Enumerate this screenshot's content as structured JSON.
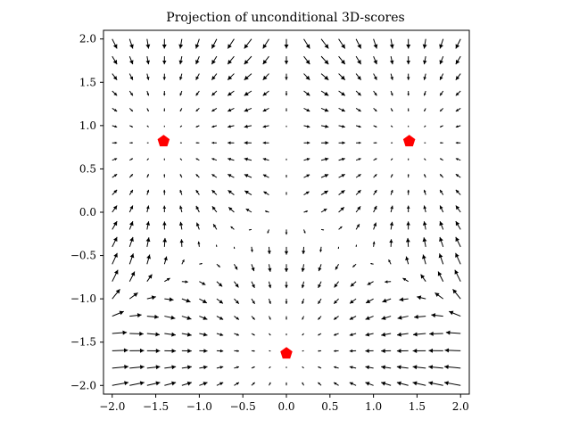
{
  "chart_data": {
    "type": "quiver",
    "title": "Projection of unconditional 3D-scores",
    "xlabel": "",
    "ylabel": "",
    "xlim": [
      -2.1,
      2.1
    ],
    "ylim": [
      -2.1,
      2.1
    ],
    "xticks": [
      -2.0,
      -1.5,
      -1.0,
      -0.5,
      0.0,
      0.5,
      1.0,
      1.5,
      2.0
    ],
    "yticks": [
      -2.0,
      -1.5,
      -1.0,
      -0.5,
      0.0,
      0.5,
      1.0,
      1.5,
      2.0
    ],
    "xtick_labels": [
      "−2.0",
      "−1.5",
      "−1.0",
      "−0.5",
      "0.0",
      "0.5",
      "1.0",
      "1.5",
      "2.0"
    ],
    "ytick_labels": [
      "−2.0",
      "−1.5",
      "−1.0",
      "−0.5",
      "0.0",
      "0.5",
      "1.0",
      "1.5",
      "2.0"
    ],
    "grid": false,
    "vector_field": {
      "x_range": [
        -2.0,
        2.0
      ],
      "y_range": [
        -2.0,
        2.0
      ],
      "grid_size": 21,
      "arrow_color": "#000000"
    },
    "markers": {
      "shape": "pentagon",
      "color": "#ff0000",
      "points": [
        {
          "x": -1.41,
          "y": 0.82
        },
        {
          "x": 1.41,
          "y": 0.82
        },
        {
          "x": 0.0,
          "y": -1.63
        }
      ]
    }
  }
}
